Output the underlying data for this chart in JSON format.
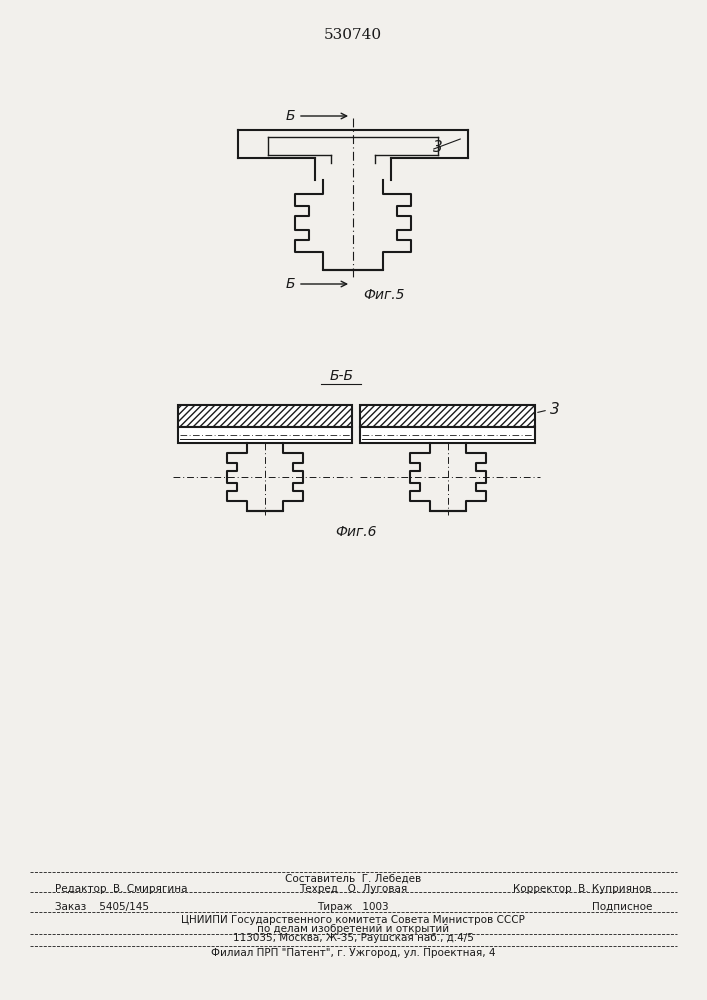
{
  "title": "530740",
  "fig5_label": "Фиг.5",
  "fig6_label": "Фиг.6",
  "label_B": "Б",
  "label_3": "3",
  "label_BB": "Б-Б",
  "bg_color": "#f2f0ec",
  "line_color": "#1a1a1a"
}
